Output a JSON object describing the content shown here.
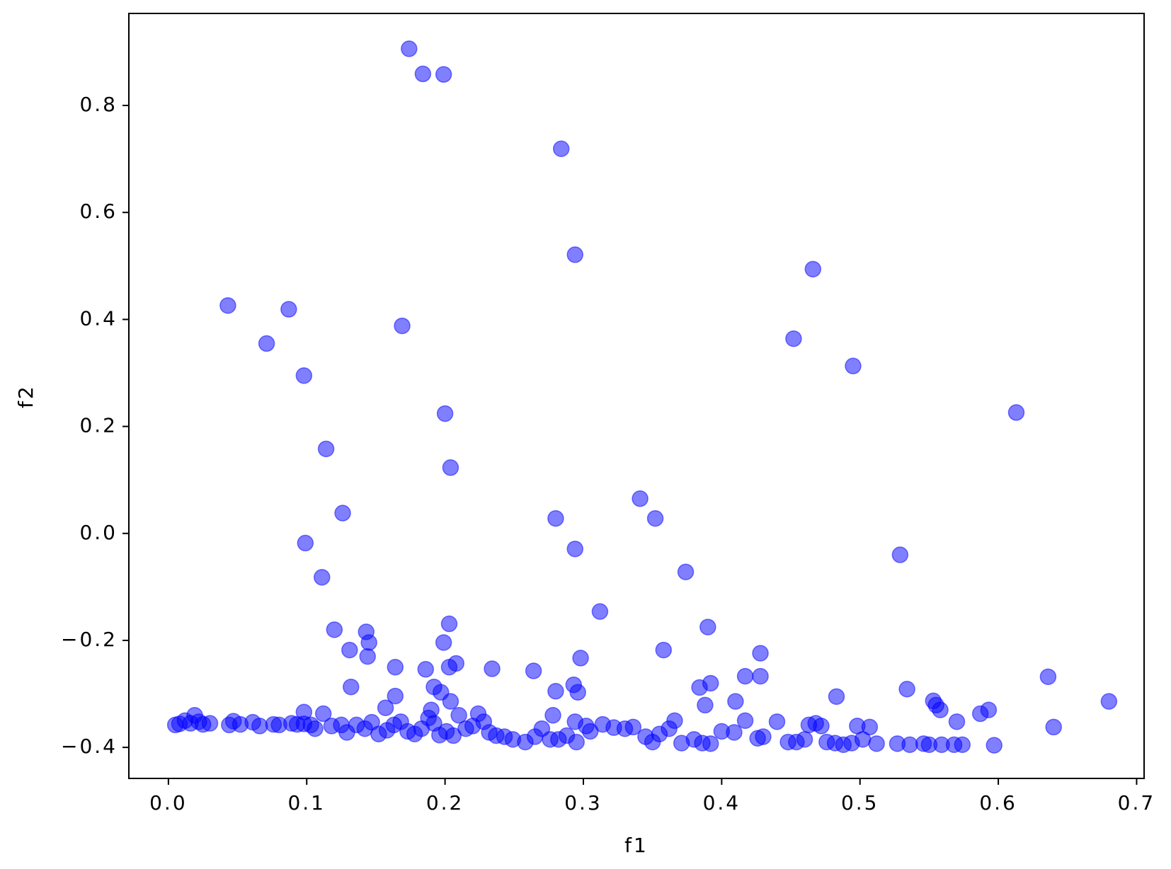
{
  "chart_data": {
    "type": "scatter",
    "xlabel": "f1",
    "ylabel": "f2",
    "x": [
      0.174,
      0.184,
      0.199,
      0.284,
      0.294,
      0.466,
      0.043,
      0.087,
      0.169,
      0.071,
      0.452,
      0.098,
      0.495,
      0.2,
      0.613,
      0.114,
      0.204,
      0.341,
      0.126,
      0.28,
      0.352,
      0.099,
      0.294,
      0.529,
      0.111,
      0.374,
      0.312,
      0.12,
      0.143,
      0.203,
      0.39,
      0.145,
      0.199,
      0.131,
      0.358,
      0.428,
      0.144,
      0.298,
      0.164,
      0.208,
      0.186,
      0.203,
      0.234,
      0.264,
      0.417,
      0.428,
      0.636,
      0.132,
      0.192,
      0.28,
      0.293,
      0.296,
      0.384,
      0.392,
      0.534,
      0.197,
      0.164,
      0.204,
      0.483,
      0.41,
      0.553,
      0.68,
      0.388,
      0.555,
      0.558,
      0.157,
      0.19,
      0.593,
      0.587,
      0.57,
      0.64,
      0.098,
      0.112,
      0.005,
      0.008,
      0.012,
      0.016,
      0.019,
      0.022,
      0.025,
      0.03,
      0.044,
      0.047,
      0.052,
      0.061,
      0.066,
      0.076,
      0.08,
      0.089,
      0.093,
      0.098,
      0.103,
      0.106,
      0.118,
      0.125,
      0.129,
      0.136,
      0.142,
      0.147,
      0.152,
      0.158,
      0.163,
      0.168,
      0.173,
      0.178,
      0.183,
      0.188,
      0.192,
      0.196,
      0.201,
      0.206,
      0.21,
      0.215,
      0.22,
      0.224,
      0.228,
      0.232,
      0.237,
      0.243,
      0.249,
      0.258,
      0.265,
      0.27,
      0.276,
      0.278,
      0.282,
      0.288,
      0.294,
      0.295,
      0.302,
      0.305,
      0.314,
      0.322,
      0.33,
      0.336,
      0.345,
      0.35,
      0.355,
      0.362,
      0.366,
      0.371,
      0.38,
      0.386,
      0.392,
      0.4,
      0.409,
      0.417,
      0.426,
      0.43,
      0.44,
      0.448,
      0.454,
      0.46,
      0.463,
      0.468,
      0.472,
      0.476,
      0.482,
      0.488,
      0.494,
      0.498,
      0.502,
      0.507,
      0.512,
      0.527,
      0.536,
      0.546,
      0.55,
      0.559,
      0.568,
      0.574,
      0.597
    ],
    "series": [
      {
        "color": "#0000ff",
        "alpha": 0.5,
        "values": [
          0.906,
          0.859,
          0.858,
          0.719,
          0.521,
          0.494,
          0.426,
          0.419,
          0.388,
          0.355,
          0.364,
          0.295,
          0.313,
          0.224,
          0.226,
          0.158,
          0.123,
          0.065,
          0.038,
          0.028,
          0.028,
          -0.018,
          -0.029,
          -0.04,
          -0.082,
          -0.072,
          -0.146,
          -0.18,
          -0.184,
          -0.169,
          -0.175,
          -0.204,
          -0.204,
          -0.218,
          -0.218,
          -0.224,
          -0.23,
          -0.233,
          -0.25,
          -0.243,
          -0.254,
          -0.25,
          -0.253,
          -0.257,
          -0.267,
          -0.267,
          -0.268,
          -0.287,
          -0.287,
          -0.295,
          -0.283,
          -0.297,
          -0.288,
          -0.28,
          -0.291,
          -0.297,
          -0.304,
          -0.314,
          -0.305,
          -0.314,
          -0.313,
          -0.314,
          -0.321,
          -0.321,
          -0.33,
          -0.326,
          -0.33,
          -0.33,
          -0.337,
          -0.352,
          -0.362,
          -0.334,
          -0.337,
          -0.358,
          -0.356,
          -0.35,
          -0.355,
          -0.34,
          -0.352,
          -0.357,
          -0.355,
          -0.358,
          -0.351,
          -0.357,
          -0.353,
          -0.36,
          -0.357,
          -0.358,
          -0.355,
          -0.357,
          -0.356,
          -0.358,
          -0.365,
          -0.36,
          -0.358,
          -0.372,
          -0.358,
          -0.365,
          -0.353,
          -0.375,
          -0.368,
          -0.358,
          -0.352,
          -0.37,
          -0.375,
          -0.365,
          -0.345,
          -0.355,
          -0.377,
          -0.37,
          -0.378,
          -0.34,
          -0.365,
          -0.36,
          -0.337,
          -0.352,
          -0.372,
          -0.378,
          -0.38,
          -0.385,
          -0.39,
          -0.38,
          -0.365,
          -0.385,
          -0.34,
          -0.385,
          -0.378,
          -0.352,
          -0.39,
          -0.36,
          -0.37,
          -0.357,
          -0.363,
          -0.365,
          -0.362,
          -0.38,
          -0.39,
          -0.375,
          -0.365,
          -0.35,
          -0.392,
          -0.385,
          -0.392,
          -0.393,
          -0.37,
          -0.372,
          -0.35,
          -0.383,
          -0.38,
          -0.352,
          -0.39,
          -0.39,
          -0.385,
          -0.358,
          -0.355,
          -0.36,
          -0.39,
          -0.392,
          -0.395,
          -0.392,
          -0.36,
          -0.385,
          -0.362,
          -0.393,
          -0.393,
          -0.395,
          -0.393,
          -0.395,
          -0.395,
          -0.395,
          -0.395,
          -0.396
        ]
      }
    ],
    "xlim": [
      -0.0286,
      0.7054
    ],
    "ylim": [
      -0.458,
      0.972
    ],
    "xticks": [
      {
        "value": 0.0,
        "label": "0.0"
      },
      {
        "value": 0.1,
        "label": "0.1"
      },
      {
        "value": 0.2,
        "label": "0.2"
      },
      {
        "value": 0.3,
        "label": "0.3"
      },
      {
        "value": 0.4,
        "label": "0.4"
      },
      {
        "value": 0.5,
        "label": "0.5"
      },
      {
        "value": 0.6,
        "label": "0.6"
      },
      {
        "value": 0.7,
        "label": "0.7"
      }
    ],
    "yticks": [
      {
        "value": -0.4,
        "label": "−0.4"
      },
      {
        "value": -0.2,
        "label": "−0.2"
      },
      {
        "value": 0.0,
        "label": "0.0"
      },
      {
        "value": 0.2,
        "label": "0.2"
      },
      {
        "value": 0.4,
        "label": "0.4"
      },
      {
        "value": 0.6,
        "label": "0.6"
      },
      {
        "value": 0.8,
        "label": "0.8"
      }
    ]
  }
}
